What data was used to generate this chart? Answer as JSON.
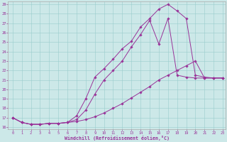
{
  "bg_color": "#cce8e8",
  "line_color": "#993399",
  "xlabel": "Windchill (Refroidissement éolien,°C)",
  "ylim_min": 16,
  "ylim_max": 29,
  "xlim_min": 0,
  "xlim_max": 23,
  "yticks": [
    16,
    17,
    18,
    19,
    20,
    21,
    22,
    23,
    24,
    25,
    26,
    27,
    28,
    29
  ],
  "xticks": [
    0,
    1,
    2,
    3,
    4,
    5,
    6,
    7,
    8,
    9,
    10,
    11,
    12,
    13,
    14,
    15,
    16,
    17,
    18,
    19,
    20,
    21,
    22,
    23
  ],
  "line1_x": [
    0,
    1,
    2,
    3,
    4,
    5,
    6,
    7,
    8,
    9,
    10,
    11,
    12,
    13,
    14,
    15,
    16,
    17,
    18,
    19,
    20,
    21,
    22,
    23
  ],
  "line1_y": [
    17,
    16.5,
    16.3,
    16.3,
    16.4,
    16.4,
    16.5,
    17.2,
    19.0,
    21.3,
    22.2,
    23.2,
    24.3,
    25.1,
    26.6,
    27.5,
    28.5,
    29.0,
    28.3,
    27.5,
    21.5,
    21.3,
    21.2,
    21.2
  ],
  "line2_x": [
    0,
    1,
    2,
    3,
    4,
    5,
    6,
    7,
    8,
    9,
    10,
    11,
    12,
    13,
    14,
    15,
    16,
    17,
    18,
    19,
    20,
    21,
    22,
    23
  ],
  "line2_y": [
    17,
    16.5,
    16.3,
    16.3,
    16.4,
    16.4,
    16.5,
    16.8,
    17.8,
    19.5,
    21.0,
    22.0,
    23.0,
    24.5,
    25.8,
    27.3,
    24.8,
    27.5,
    21.5,
    21.3,
    21.2,
    21.2,
    21.2,
    21.2
  ],
  "line3_x": [
    0,
    1,
    2,
    3,
    4,
    5,
    6,
    7,
    8,
    9,
    10,
    11,
    12,
    13,
    14,
    15,
    16,
    17,
    18,
    19,
    20,
    21,
    22,
    23
  ],
  "line3_y": [
    17,
    16.5,
    16.3,
    16.3,
    16.4,
    16.4,
    16.5,
    16.6,
    16.8,
    17.1,
    17.5,
    18.0,
    18.5,
    19.1,
    19.7,
    20.3,
    21.0,
    21.5,
    22.0,
    22.5,
    23.0,
    21.2,
    21.2,
    21.2
  ]
}
